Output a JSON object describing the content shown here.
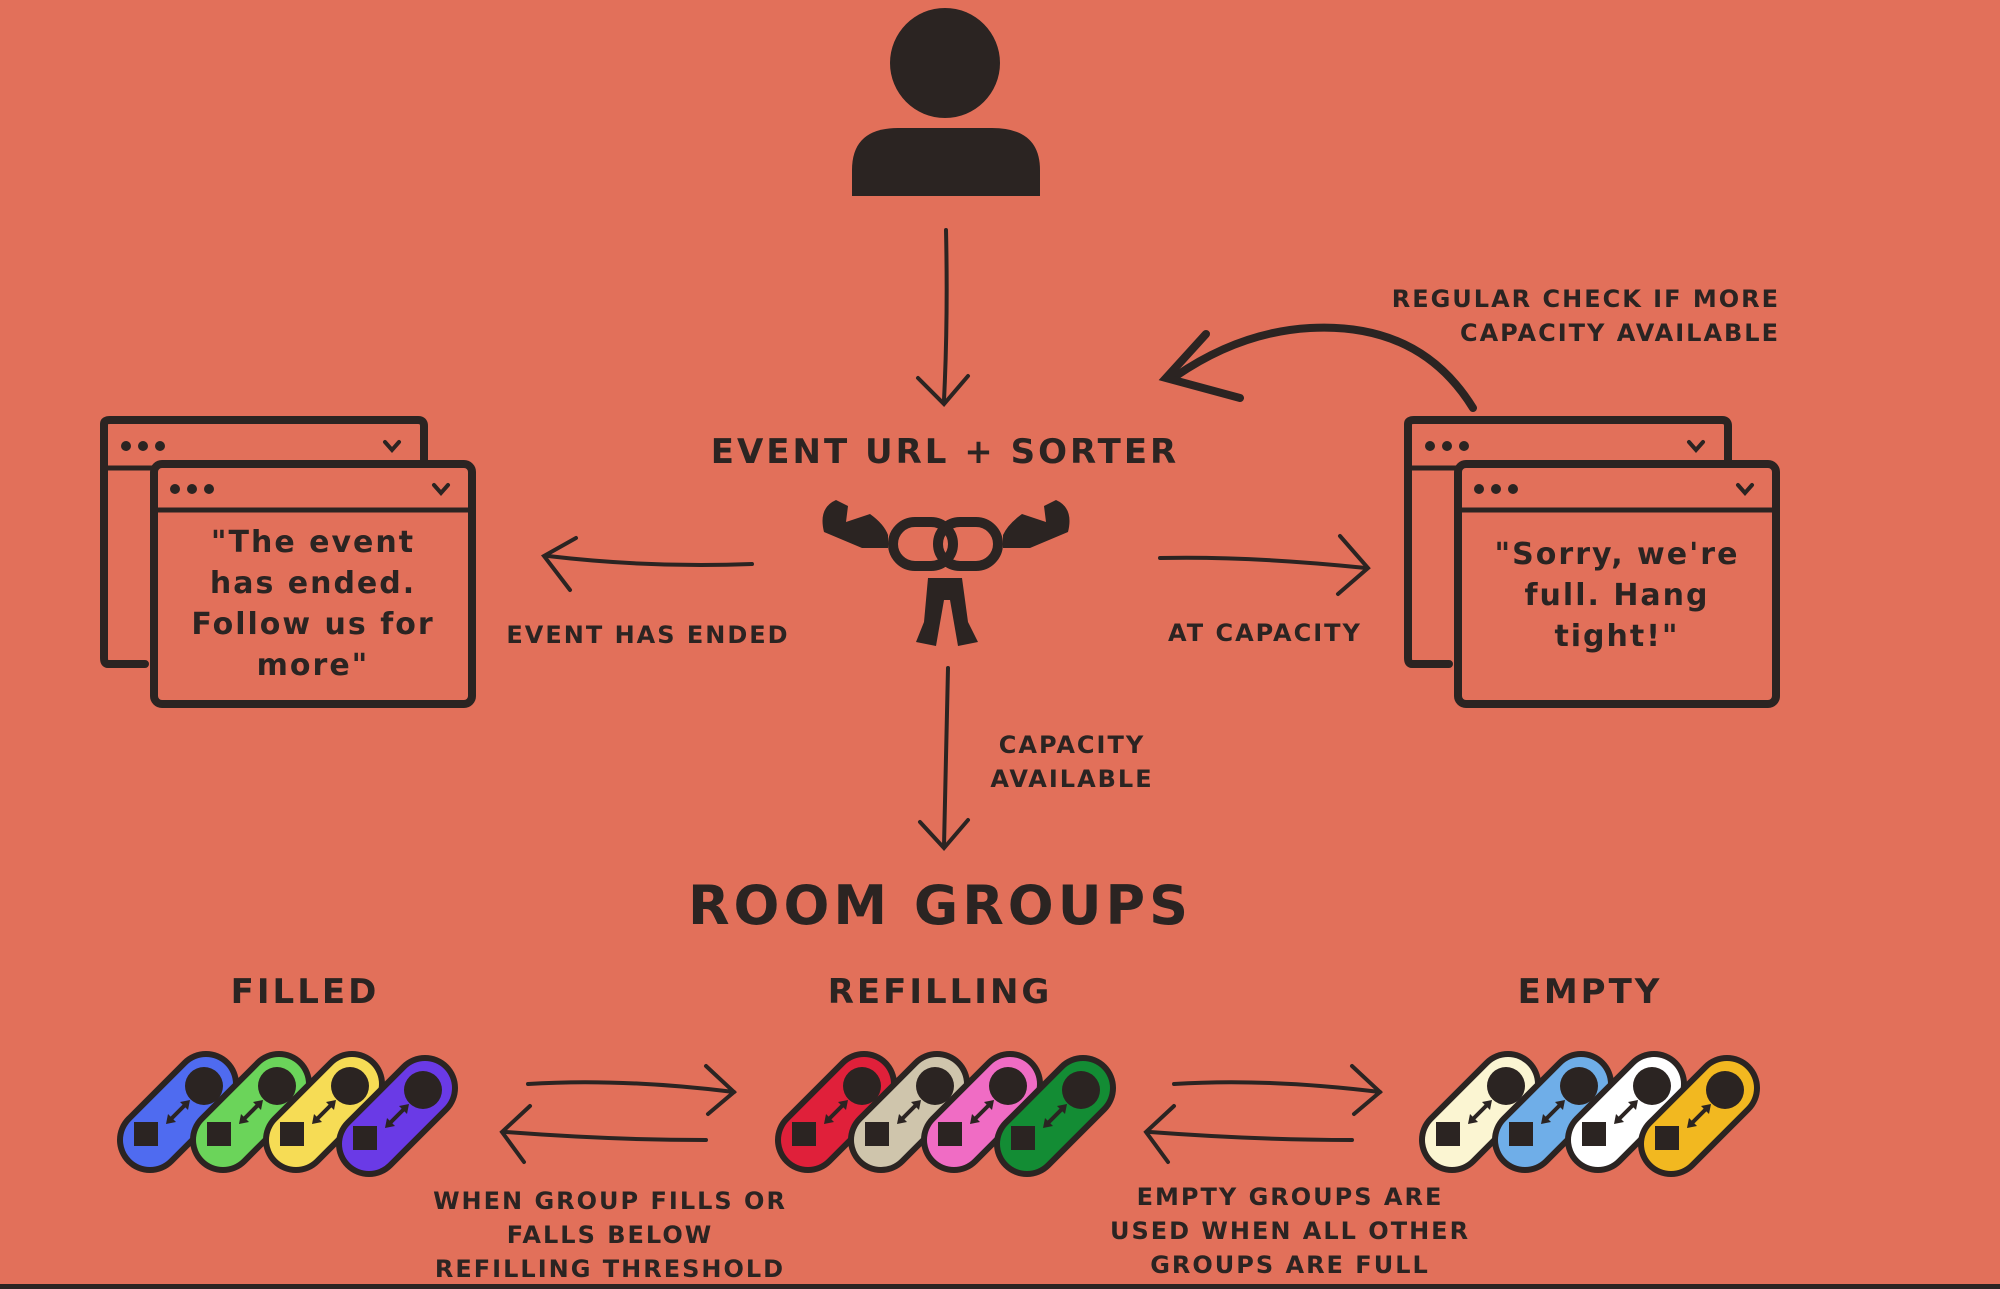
{
  "labels": {
    "center_title": "EVENT URL + SORTER",
    "feedback_loop": "REGULAR CHECK IF MORE\nCAPACITY AVAILABLE",
    "event_ended": "EVENT HAS ENDED",
    "at_capacity": "AT CAPACITY",
    "capacity_available": "CAPACITY\nAVAILABLE",
    "room_groups": "ROOM GROUPS",
    "filled": "FILLED",
    "refilling": "REFILLING",
    "empty": "EMPTY",
    "filled_refilling_note": "WHEN GROUP FILLS OR\nFALLS BELOW\nREFILLING THRESHOLD",
    "refilling_empty_note": "EMPTY GROUPS ARE\nUSED WHEN ALL OTHER\nGROUPS ARE FULL"
  },
  "windows": {
    "ended_message": "\"The event\nhas ended.\nFollow us for\nmore\"",
    "full_message": "\"Sorry, we're\nfull. Hang\ntight!\""
  },
  "colors": {
    "background": "#E2705A",
    "ink": "#2B2422",
    "filled_groups": [
      "#4F6BF0",
      "#6BD45A",
      "#F6DC55",
      "#6A3AE6"
    ],
    "refilling_groups": [
      "#E0203A",
      "#CFC5AC",
      "#F06CC4",
      "#138C34"
    ],
    "empty_groups": [
      "#FBF5D2",
      "#6FAEE8",
      "#FFFFFF",
      "#F2B820"
    ]
  },
  "icons": {
    "user": "user-icon",
    "sorter": "strong-link-icon",
    "browser": "browser-window-icon",
    "room_group": "toggle-pill-icon"
  }
}
